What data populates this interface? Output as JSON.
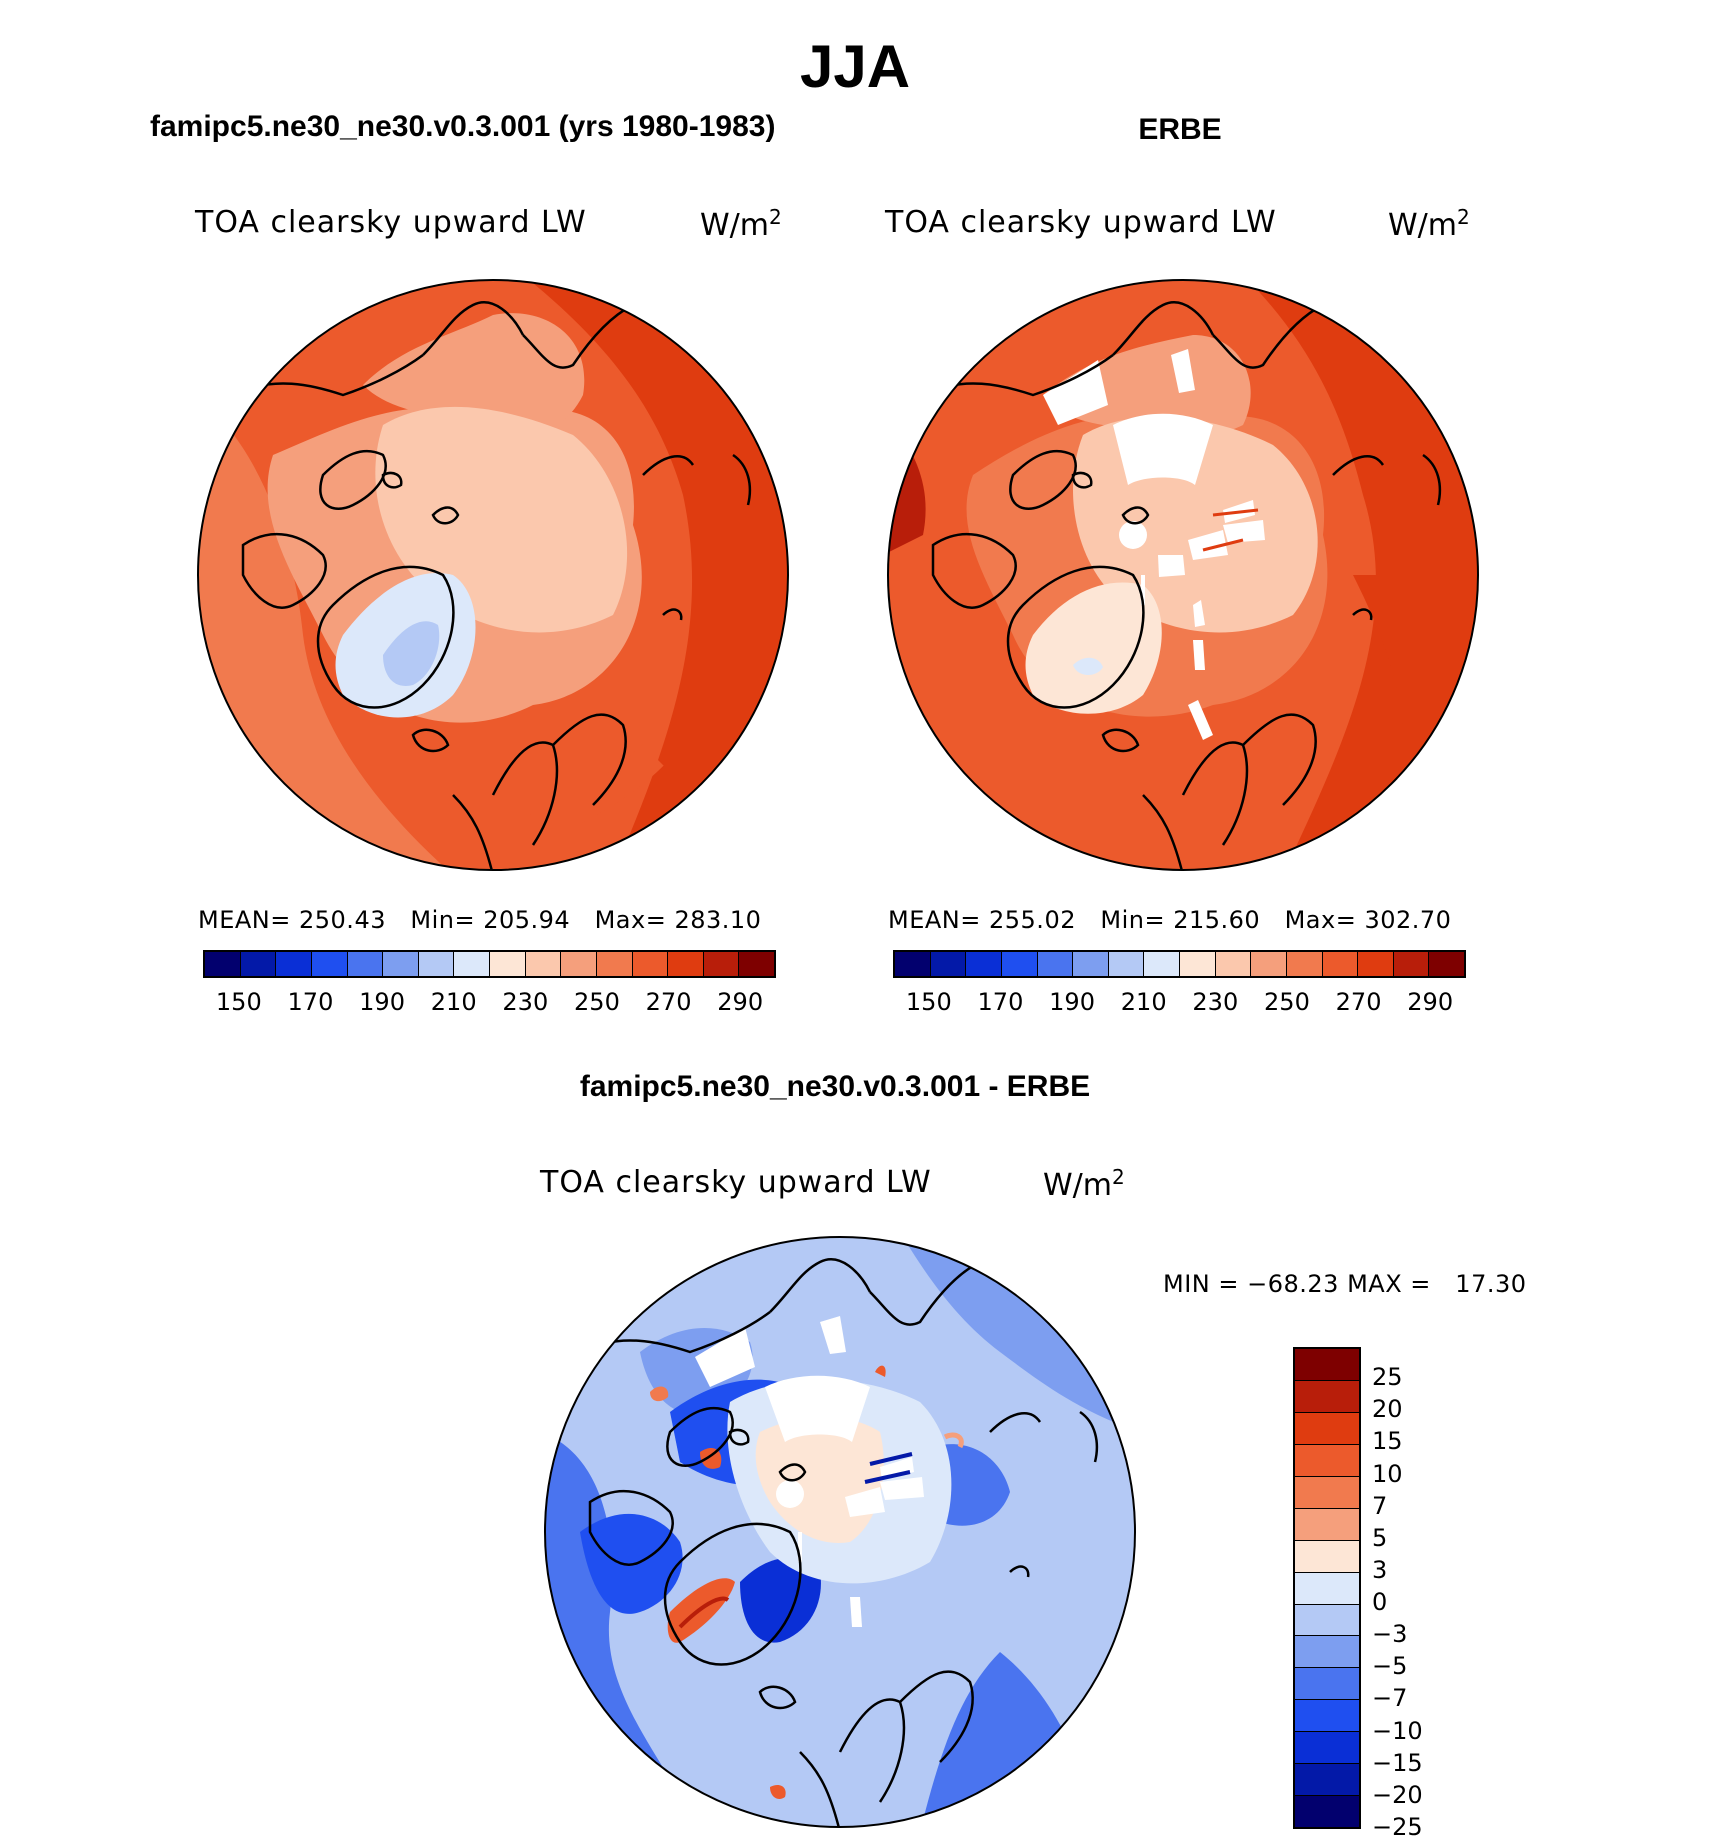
{
  "title": "JJA",
  "variable": "TOA clearsky upward LW",
  "units": "W/m",
  "units_sup": "2",
  "panels": {
    "model": {
      "title": "famipc5.ne30_ne30.v0.3.001 (yrs 1980-1983)",
      "mean_label": "MEAN=",
      "mean": "250.43",
      "min_label": "Min=",
      "min": "205.94",
      "max_label": "Max=",
      "max": "283.10"
    },
    "obs": {
      "title": "ERBE",
      "mean_label": "MEAN=",
      "mean": "255.02",
      "min_label": "Min=",
      "min": "215.60",
      "max_label": "Max=",
      "max": "302.70"
    },
    "diff": {
      "title": "famipc5.ne30_ne30.v0.3.001 - ERBE",
      "min_label": "MIN =",
      "min": "−68.23",
      "max_label": "MAX =",
      "max": "17.30"
    }
  },
  "colorbar_abs": {
    "colors": [
      "#02006e",
      "#0319a8",
      "#0a2fd6",
      "#1f4ff0",
      "#4a74ef",
      "#7d9ef0",
      "#b4c9f5",
      "#dce8fa",
      "#fde6d6",
      "#fbc8ad",
      "#f59f7c",
      "#f17a4e",
      "#ec5a2c",
      "#df3c10",
      "#b81e0a",
      "#7e0000"
    ],
    "ticks": [
      "150",
      "170",
      "190",
      "210",
      "230",
      "250",
      "270",
      "290"
    ]
  },
  "colorbar_diff": {
    "colors": [
      "#7e0000",
      "#b81e0a",
      "#df3c10",
      "#ec5a2c",
      "#f17a4e",
      "#f59f7c",
      "#fde6d6",
      "#dce8fa",
      "#b4c9f5",
      "#7d9ef0",
      "#4a74ef",
      "#1f4ff0",
      "#0a2fd6",
      "#0319a8",
      "#02006e"
    ],
    "ticks": [
      "25",
      "20",
      "15",
      "10",
      "7",
      "5",
      "3",
      "0",
      "−3",
      "−5",
      "−7",
      "−10",
      "−15",
      "−20",
      "−25"
    ]
  }
}
